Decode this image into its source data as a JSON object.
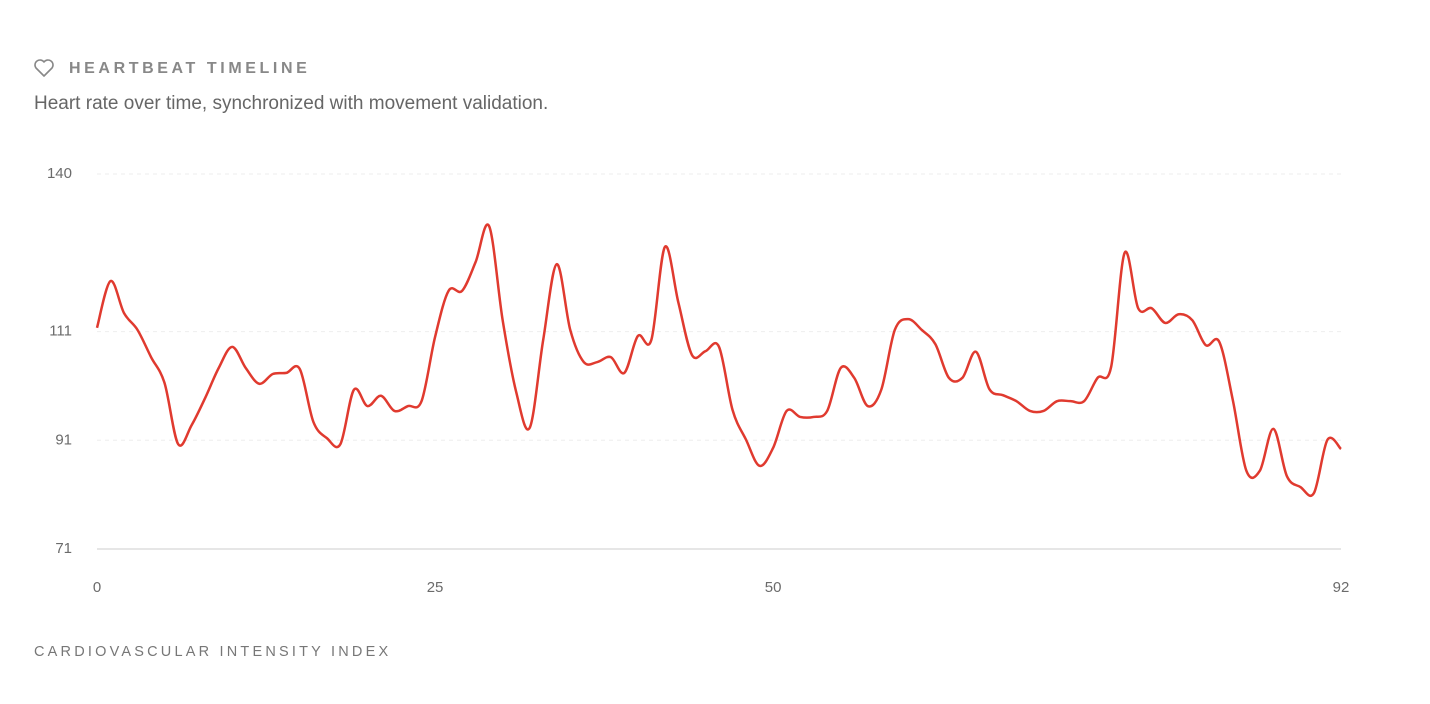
{
  "chart_data": {
    "type": "line",
    "title": "HEARTBEAT TIMELINE",
    "subtitle": "Heart rate over time, synchronized with movement validation.",
    "x_label": "CARDIOVASCULAR INTENSITY INDEX",
    "x": [
      0,
      1,
      2,
      3,
      4,
      5,
      6,
      7,
      8,
      9,
      10,
      11,
      12,
      13,
      14,
      15,
      16,
      17,
      18,
      19,
      20,
      21,
      22,
      23,
      24,
      25,
      26,
      27,
      28,
      29,
      30,
      31,
      32,
      33,
      34,
      35,
      36,
      37,
      38,
      39,
      40,
      41,
      42,
      43,
      44,
      45,
      46,
      47,
      48,
      49,
      50,
      51,
      52,
      53,
      54,
      55,
      56,
      57,
      58,
      59,
      60,
      61,
      62,
      63,
      64,
      65,
      66,
      67,
      68,
      69,
      70,
      71,
      72,
      73,
      74,
      75,
      76,
      77,
      78,
      79,
      80,
      81,
      82,
      83,
      84,
      85,
      86,
      87,
      88,
      89,
      90,
      91,
      92
    ],
    "values": [
      111.7,
      120.3,
      114.4,
      111.3,
      106.3,
      101.5,
      90.3,
      93.8,
      98.8,
      104.3,
      108.2,
      104.3,
      101.4,
      103.2,
      103.4,
      104.1,
      94.4,
      91.4,
      90.3,
      100.3,
      97.3,
      99.2,
      96.4,
      97.3,
      98.2,
      110,
      118.5,
      118.5,
      123.8,
      130.4,
      113.1,
      99.9,
      93.3,
      109.5,
      123.4,
      111.3,
      105.4,
      105.4,
      106.3,
      103.4,
      110.2,
      109.5,
      126.6,
      116.3,
      106.7,
      107.4,
      108.2,
      96.6,
      91.1,
      86.3,
      89.6,
      96.4,
      95.3,
      95.3,
      96.4,
      104.3,
      102.5,
      97.3,
      100.3,
      111.3,
      113.3,
      111.3,
      108.7,
      102.5,
      102.5,
      107.3,
      100.4,
      99.3,
      98.2,
      96.4,
      96.4,
      98.2,
      98.2,
      98.2,
      102.5,
      104.5,
      125.5,
      115.3,
      115.3,
      112.6,
      114.2,
      113.1,
      108.5,
      109.1,
      98.4,
      85.4,
      85.4,
      93.1,
      84.4,
      82.4,
      81.3,
      91.1,
      89.4
    ],
    "color": "#e03a2f",
    "xlim": [
      0,
      92
    ],
    "xticks": [
      0,
      25,
      50,
      92
    ],
    "ylim": [
      71,
      140
    ],
    "yticks": [
      71,
      91,
      111,
      140
    ],
    "grid": true
  }
}
